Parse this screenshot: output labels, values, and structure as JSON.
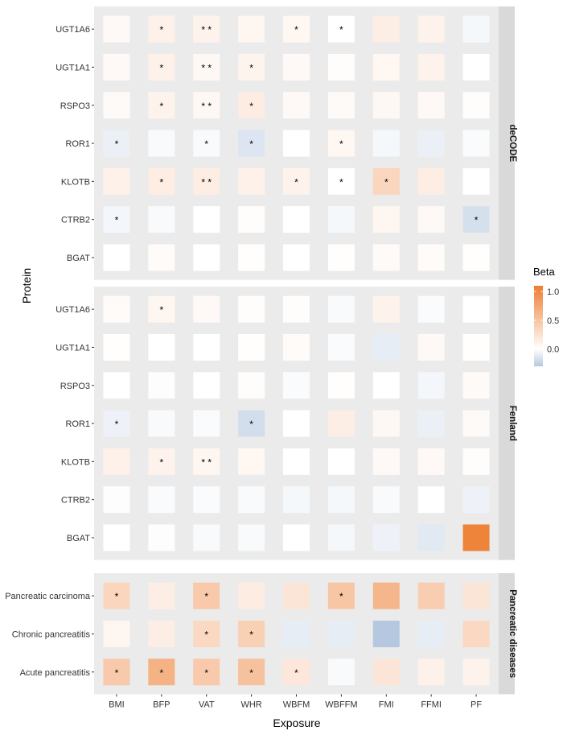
{
  "chart_data": {
    "type": "heatmap",
    "title": "",
    "xlabel": "Exposure",
    "ylabel": "Protein",
    "x": [
      "BMI",
      "BFP",
      "VAT",
      "WHR",
      "WBFM",
      "WBFFM",
      "FMI",
      "FFMI",
      "PF"
    ],
    "legend": {
      "title": "Beta",
      "min": -0.3,
      "max": 1.1,
      "ticks": [
        {
          "value": 0.0,
          "label": "0.0"
        },
        {
          "value": 0.5,
          "label": "0.5"
        },
        {
          "value": 1.0,
          "label": "1.0"
        }
      ],
      "colors": {
        "low": "#b5c8e0",
        "mid": "#ffffff",
        "high": "#ed7d31"
      }
    },
    "colors": {
      "panel_bg": "#ebebeb",
      "strip_bg": "#d9d9d9",
      "text": "#333333"
    },
    "panels": [
      {
        "label": "deCODE",
        "rows": [
          "UGT1A6",
          "UGT1A1",
          "RSPO3",
          "ROR1",
          "KLOTB",
          "CTRB2",
          "BGAT"
        ],
        "values": [
          [
            0.05,
            0.12,
            0.1,
            0.08,
            0.07,
            0.0,
            0.14,
            0.1,
            -0.04
          ],
          [
            0.05,
            0.12,
            0.06,
            0.09,
            0.05,
            0.02,
            0.07,
            0.1,
            0.0
          ],
          [
            0.04,
            0.1,
            0.06,
            0.16,
            0.05,
            0.04,
            0.06,
            0.05,
            0.02
          ],
          [
            -0.08,
            -0.03,
            -0.03,
            -0.14,
            0.0,
            0.07,
            -0.04,
            -0.08,
            -0.02
          ],
          [
            0.12,
            0.15,
            0.15,
            0.12,
            0.1,
            0.0,
            0.35,
            0.15,
            0.0
          ],
          [
            -0.05,
            -0.03,
            0.0,
            0.02,
            0.0,
            -0.04,
            0.08,
            0.05,
            -0.17
          ],
          [
            0.0,
            0.03,
            0.0,
            0.01,
            0.0,
            0.01,
            0.04,
            0.03,
            0.01
          ]
        ],
        "stars": [
          [
            "",
            "*",
            "* *",
            "",
            "*",
            "*",
            "",
            "",
            ""
          ],
          [
            "",
            "*",
            "* *",
            "*",
            "",
            "",
            "",
            "",
            ""
          ],
          [
            "",
            "*",
            "* *",
            "*",
            "",
            "",
            "",
            "",
            ""
          ],
          [
            "*",
            "",
            "*",
            "*",
            "",
            "*",
            "",
            "",
            ""
          ],
          [
            "",
            "*",
            "* *",
            "",
            "*",
            "*",
            "*",
            "",
            ""
          ],
          [
            "*",
            "",
            "",
            "",
            "",
            "",
            "",
            "",
            "*"
          ],
          [
            "",
            "",
            "",
            "",
            "",
            "",
            "",
            "",
            ""
          ]
        ]
      },
      {
        "label": "Fenland",
        "rows": [
          "UGT1A6",
          "UGT1A1",
          "RSPO3",
          "ROR1",
          "KLOTB",
          "CTRB2",
          "BGAT"
        ],
        "values": [
          [
            0.03,
            0.08,
            0.05,
            0.02,
            0.02,
            -0.03,
            0.1,
            -0.02,
            0.0
          ],
          [
            0.01,
            0.0,
            0.0,
            0.01,
            0.03,
            -0.02,
            -0.1,
            0.05,
            0.01
          ],
          [
            0.0,
            -0.01,
            0.0,
            0.02,
            -0.02,
            0.01,
            0.0,
            -0.05,
            0.04
          ],
          [
            -0.07,
            -0.03,
            -0.02,
            -0.18,
            0.0,
            0.14,
            0.06,
            -0.08,
            0.04
          ],
          [
            0.12,
            0.1,
            0.08,
            0.07,
            0.0,
            0.0,
            0.05,
            0.05,
            0.02
          ],
          [
            -0.01,
            -0.02,
            -0.02,
            -0.03,
            -0.04,
            -0.04,
            -0.03,
            0.0,
            -0.07
          ],
          [
            0.0,
            -0.01,
            -0.03,
            -0.03,
            0.0,
            -0.04,
            -0.07,
            -0.12,
            1.05
          ]
        ],
        "stars": [
          [
            "",
            "*",
            "",
            "",
            "",
            "",
            "",
            "",
            ""
          ],
          [
            "",
            "",
            "",
            "",
            "",
            "",
            "",
            "",
            ""
          ],
          [
            "",
            "",
            "",
            "",
            "",
            "",
            "",
            "",
            ""
          ],
          [
            "*",
            "",
            "",
            "*",
            "",
            "",
            "",
            "",
            ""
          ],
          [
            "",
            "*",
            "* *",
            "",
            "",
            "",
            "",
            "",
            ""
          ],
          [
            "",
            "",
            "",
            "",
            "",
            "",
            "",
            "",
            ""
          ],
          [
            "",
            "",
            "",
            "",
            "",
            "",
            "",
            "",
            ""
          ]
        ]
      },
      {
        "label": "Pancreatic diseases",
        "rows": [
          "Pancreatic carcinoma",
          "Chronic pancreatitis",
          "Acute pancreatitis"
        ],
        "values": [
          [
            0.35,
            0.14,
            0.45,
            0.16,
            0.22,
            0.48,
            0.62,
            0.42,
            0.22
          ],
          [
            0.08,
            0.14,
            0.33,
            0.4,
            -0.1,
            -0.1,
            -0.3,
            -0.1,
            0.33
          ],
          [
            0.45,
            0.65,
            0.45,
            0.52,
            0.2,
            -0.03,
            0.22,
            0.12,
            0.1
          ]
        ],
        "stars": [
          [
            "*",
            "",
            "*",
            "",
            "",
            "*",
            "",
            "",
            ""
          ],
          [
            "",
            "",
            "*",
            "*",
            "",
            "",
            "",
            "",
            ""
          ],
          [
            "*",
            "*",
            "*",
            "*",
            "*",
            "",
            "",
            "",
            ""
          ]
        ]
      }
    ]
  }
}
